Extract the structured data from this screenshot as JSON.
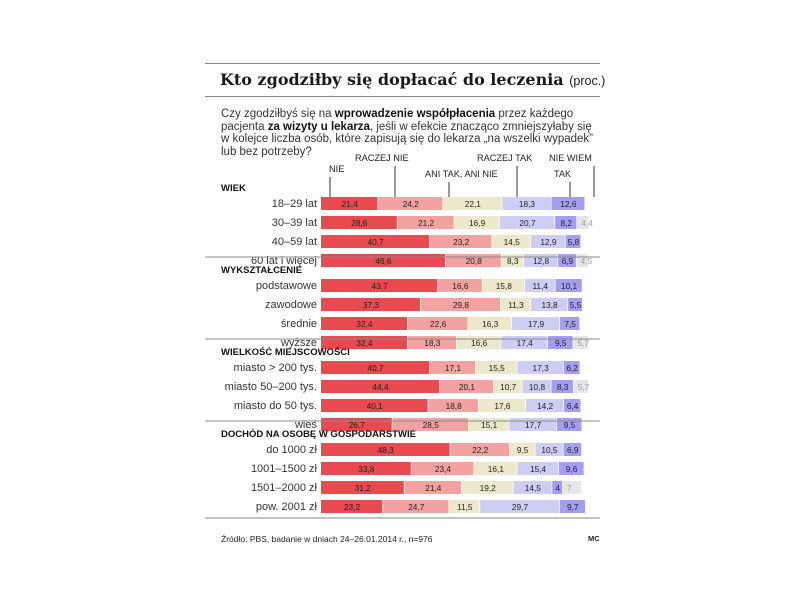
{
  "title": "Kto zgodziłby się dopłacać do leczenia",
  "title_unit": "(proc.)",
  "question": {
    "p1": "Czy zgodziłbyś się na ",
    "b1": "wprowadzenie współpłacenia",
    "p2": " przez każdego pacjenta ",
    "b2": "za wizyty u lekarza",
    "p3": ", jeśli w efekcie znacząco zmniejszyłaby się w kolejce liczba osób, które zapisują się do lekarza „na wszelki wypadek” lub bez potrzeby?"
  },
  "source": "Źródło: PBS, badanie w dniach 24–26.01.2014 r., n=976",
  "credit": "MC",
  "chart_data": {
    "type": "bar",
    "orientation": "horizontal",
    "stacked": true,
    "legend_placement": "top",
    "series": [
      {
        "name": "NIE",
        "color": "#e84a4f",
        "label_color": "#222222"
      },
      {
        "name": "RACZEJ NIE",
        "color": "#f3a2a2",
        "label_color": "#222222"
      },
      {
        "name": "ANI TAK, ANI NIE",
        "color": "#ece8cc",
        "label_color": "#222222"
      },
      {
        "name": "RACZEJ TAK",
        "color": "#cfcdf4",
        "label_color": "#222222"
      },
      {
        "name": "TAK",
        "color": "#a59df0",
        "label_color": "#222222"
      },
      {
        "name": "NIE WIEM",
        "color": "#e6e6ea",
        "label_color": "#9c9c9c"
      }
    ],
    "groups": [
      {
        "name": "WIEK",
        "rows": [
          {
            "label": "18–29 lat",
            "values": [
              21.4,
              24.2,
              22.1,
              18.3,
              12.6,
              0
            ],
            "texts": [
              "21,4",
              "24,2",
              "22,1",
              "18,3",
              "12,6",
              ""
            ]
          },
          {
            "label": "30–39 lat",
            "values": [
              28.6,
              21.2,
              16.9,
              20.7,
              8.2,
              4.4
            ],
            "texts": [
              "28,6",
              "21,2",
              "16,9",
              "20,7",
              "8,2",
              "4,4"
            ]
          },
          {
            "label": "40–59 lat",
            "values": [
              40.7,
              23.2,
              14.5,
              12.9,
              5.8,
              0
            ],
            "texts": [
              "40,7",
              "23,2",
              "14,5",
              "12,9",
              "5,8",
              ""
            ]
          },
          {
            "label": "60 lat i więcej",
            "values": [
              46.6,
              20.8,
              8.3,
              12.8,
              6.9,
              4.5
            ],
            "texts": [
              "46,6",
              "20,8",
              "8,3",
              "12,8",
              "6,9",
              "4,5"
            ]
          }
        ]
      },
      {
        "name": "WYKSZTAŁCENIE",
        "rows": [
          {
            "label": "podstawowe",
            "values": [
              43.7,
              16.6,
              15.8,
              11.4,
              10.1,
              0
            ],
            "texts": [
              "43,7",
              "16,6",
              "15,8",
              "11,4",
              "10,1",
              ""
            ]
          },
          {
            "label": "zawodowe",
            "values": [
              37.3,
              29.8,
              11.3,
              13.8,
              5.5,
              0
            ],
            "texts": [
              "37,3",
              "29,8",
              "11,3",
              "13,8",
              "5,5",
              ""
            ]
          },
          {
            "label": "średnie",
            "values": [
              32.4,
              22.6,
              16.3,
              17.9,
              7.5,
              0
            ],
            "texts": [
              "32,4",
              "22,6",
              "16,3",
              "17,9",
              "7,5",
              ""
            ]
          },
          {
            "label": "wyższe",
            "values": [
              32.4,
              18.3,
              16.6,
              17.4,
              9.5,
              5.7
            ],
            "texts": [
              "32,4",
              "18,3",
              "16,6",
              "17,4",
              "9,5",
              "5,7"
            ]
          }
        ]
      },
      {
        "name": "WIELKOŚĆ MIEJSCOWOŚCI",
        "rows": [
          {
            "label": "miasto > 200 tys.",
            "values": [
              40.7,
              17.1,
              15.5,
              17.3,
              6.2,
              0
            ],
            "texts": [
              "40,7",
              "17,1",
              "15,5",
              "17,3",
              "6,2",
              ""
            ]
          },
          {
            "label": "miasto 50–200 tys.",
            "values": [
              44.4,
              20.1,
              10.7,
              10.8,
              8.3,
              5.7
            ],
            "texts": [
              "44,4",
              "20,1",
              "10,7",
              "10,8",
              "8,3",
              "5,7"
            ]
          },
          {
            "label": "miasto do 50 tys.",
            "values": [
              40.1,
              18.8,
              17.6,
              14.2,
              6.4,
              0
            ],
            "texts": [
              "40,1",
              "18,8",
              "17,6",
              "14,2",
              "6,4",
              ""
            ]
          },
          {
            "label": "wieś",
            "values": [
              26.7,
              28.5,
              15.1,
              17.7,
              9.5,
              0
            ],
            "texts": [
              "26,7",
              "28,5",
              "15,1",
              "17,7",
              "9,5",
              ""
            ]
          }
        ]
      },
      {
        "name": "DOCHÓD NA OSOBĘ W GOSPODARSTWIE",
        "rows": [
          {
            "label": "do 1000 zł",
            "values": [
              48.3,
              22.2,
              9.5,
              10.5,
              6.9,
              0
            ],
            "texts": [
              "48,3",
              "22,2",
              "9,5",
              "10,5",
              "6,9",
              ""
            ]
          },
          {
            "label": "1001–1500 zł",
            "values": [
              33.8,
              23.4,
              16.1,
              15.4,
              9.6,
              0
            ],
            "texts": [
              "33,8",
              "23,4",
              "16,1",
              "15,4",
              "9,6",
              ""
            ]
          },
          {
            "label": "1501–2000 zł",
            "values": [
              31.2,
              21.4,
              19.2,
              14.5,
              4,
              7
            ],
            "texts": [
              "31,2",
              "21,4",
              "19,2",
              "14,5",
              "4",
              "7"
            ]
          },
          {
            "label": "pow. 2001 zł",
            "values": [
              23.2,
              24.7,
              11.5,
              29.7,
              9.7,
              0
            ],
            "texts": [
              "23,2",
              "24,7",
              "11,5",
              "29,7",
              "9,7",
              ""
            ]
          }
        ]
      }
    ]
  }
}
